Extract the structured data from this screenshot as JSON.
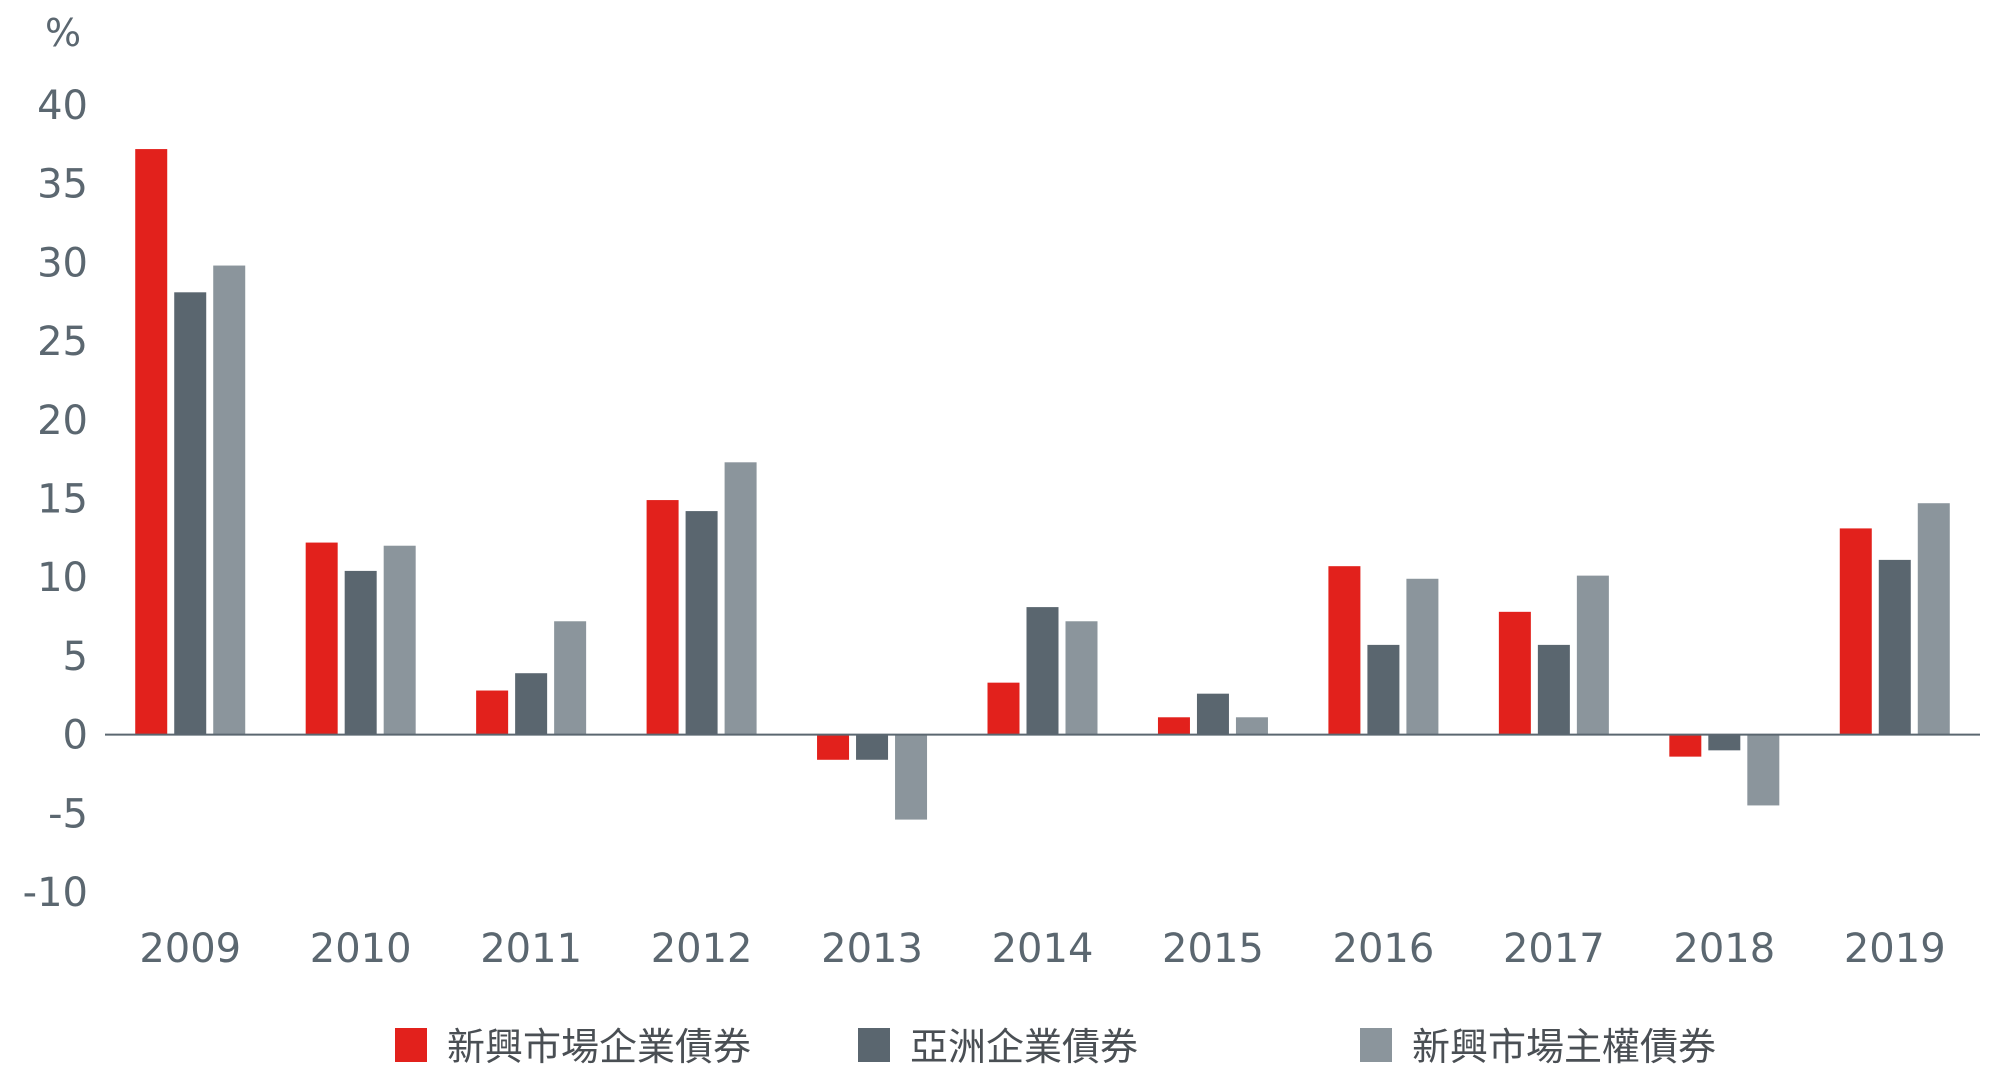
{
  "chart_data": {
    "type": "bar",
    "ylabel": "%",
    "ylim": [
      -10,
      40
    ],
    "yticks": [
      40,
      35,
      30,
      25,
      20,
      15,
      10,
      5,
      0,
      -5,
      -10
    ],
    "categories": [
      "2009",
      "2010",
      "2011",
      "2012",
      "2013",
      "2014",
      "2015",
      "2016",
      "2017",
      "2018",
      "2019"
    ],
    "series": [
      {
        "name": "新興市場企業債券",
        "color": "#e2211c",
        "values": [
          37.2,
          12.2,
          2.8,
          14.9,
          -1.6,
          3.3,
          1.1,
          10.7,
          7.8,
          -1.4,
          13.1
        ]
      },
      {
        "name": "亞洲企業債券",
        "color": "#5a666f",
        "values": [
          28.1,
          10.4,
          3.9,
          14.2,
          -1.6,
          8.1,
          2.6,
          5.7,
          5.7,
          -1.0,
          11.1
        ]
      },
      {
        "name": "新興市場主權債券",
        "color": "#8b959c",
        "values": [
          29.8,
          12.0,
          7.2,
          17.3,
          -5.4,
          7.2,
          1.1,
          9.9,
          10.1,
          -4.5,
          14.7
        ]
      }
    ],
    "grid": false,
    "legend_position": "bottom"
  }
}
